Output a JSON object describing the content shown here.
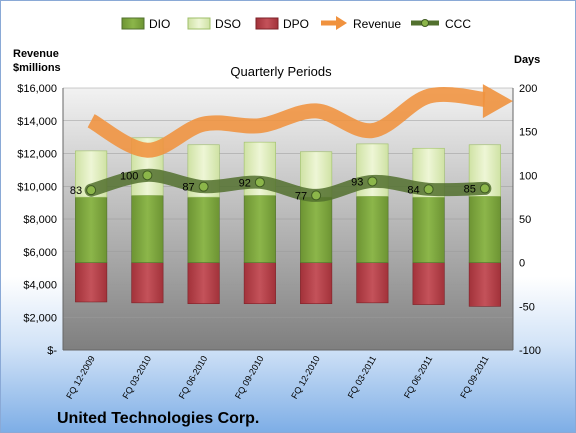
{
  "company": "United Technologies Corp.",
  "chart_data": {
    "type": "bar",
    "title": "Quarterly Periods",
    "left_axis_label_line1": "Revenue",
    "left_axis_label_line2": "$millions",
    "right_axis_label": "Days",
    "categories": [
      "FQ 12-2009",
      "FQ 03-2010",
      "FQ 06-2010",
      "FQ 09-2010",
      "FQ 12-2010",
      "FQ 03-2011",
      "FQ 06-2011",
      "FQ 09-2011"
    ],
    "left_ticks": [
      "$16,000",
      "$14,000",
      "$12,000",
      "$10,000",
      "$8,000",
      "$6,000",
      "$4,000",
      "$2,000",
      "$-"
    ],
    "right_ticks": [
      "200",
      "150",
      "100",
      "50",
      "0",
      "-50",
      "-100"
    ],
    "ylim_left": [
      0,
      16000
    ],
    "ylim_right": [
      -100,
      200
    ],
    "legend_position": "top",
    "series": [
      {
        "name": "DIO",
        "color": "#79a33c",
        "values": [
          75,
          77,
          75,
          77,
          75,
          76,
          75,
          76
        ]
      },
      {
        "name": "DSO",
        "color": "#dcebb4",
        "values": [
          53,
          66,
          60,
          61,
          52,
          60,
          56,
          59
        ]
      },
      {
        "name": "DPO",
        "color": "#b13b43",
        "values": [
          -45,
          -46,
          -47,
          -47,
          -47,
          -46,
          -48,
          -50
        ]
      },
      {
        "name": "Revenue",
        "color": "#f0923e",
        "values": [
          14000,
          12200,
          13800,
          13700,
          14600,
          13400,
          15500,
          15300
        ]
      },
      {
        "name": "CCC",
        "color": "#52702e",
        "values": [
          83,
          100,
          87,
          92,
          77,
          93,
          84,
          85
        ]
      }
    ],
    "ccc_labels": [
      "83",
      "100",
      "87",
      "92",
      "77",
      "93",
      "84",
      "85"
    ]
  }
}
